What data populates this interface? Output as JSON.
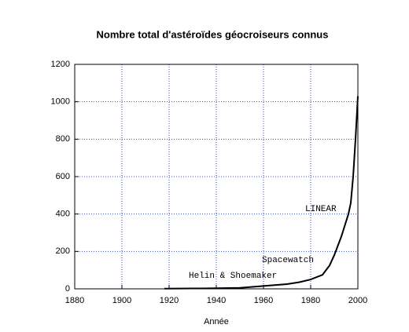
{
  "chart_data": {
    "type": "line",
    "title": "Nombre total d'astéroïdes géocroiseurs connus",
    "x_label": "Année",
    "x": [
      1918,
      1930,
      1940,
      1950,
      1960,
      1970,
      1975,
      1980,
      1985,
      1988,
      1990,
      1993,
      1996,
      1997,
      1998,
      1999,
      2000
    ],
    "series": [
      {
        "name": "Astéroïdes géocroiseurs",
        "color": "#000000",
        "values": [
          1,
          2,
          3,
          5,
          15,
          25,
          35,
          50,
          75,
          125,
          180,
          280,
          400,
          460,
          600,
          800,
          1030
        ]
      }
    ],
    "xlim": [
      1880,
      2000
    ],
    "xticks": [
      1880,
      1900,
      1920,
      1940,
      1960,
      1980,
      2000
    ],
    "ylim": [
      0,
      1200
    ],
    "yticks": [
      0,
      200,
      400,
      600,
      800,
      1000,
      1200
    ],
    "grid": true,
    "annotations": [
      "LINEAR",
      "Spacewatch",
      "Helin & Shoemaker"
    ]
  }
}
